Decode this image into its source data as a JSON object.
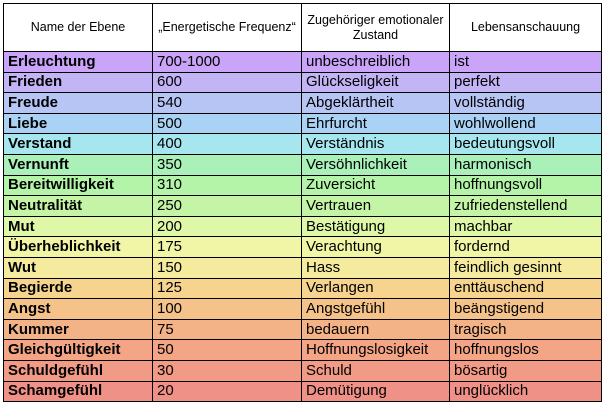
{
  "headers": [
    "Name der Ebene",
    "„Energetische Frequenz“",
    "Zugehöriger emotionaler Zustand",
    "Lebensanschauung"
  ],
  "rows": [
    {
      "name": "Erleuchtung",
      "freq": "700-1000",
      "state": "unbeschreiblich",
      "view": "ist",
      "color": "#c9a4f8"
    },
    {
      "name": "Frieden",
      "freq": "600",
      "state": "Glückseligkeit",
      "view": "perfekt",
      "color": "#c3b4f6"
    },
    {
      "name": "Freude",
      "freq": "540",
      "state": "Abgeklärtheit",
      "view": "vollständig",
      "color": "#b7c5f5"
    },
    {
      "name": "Liebe",
      "freq": "500",
      "state": "Ehrfurcht",
      "view": "wohlwollend",
      "color": "#a9d2f4"
    },
    {
      "name": "Verstand",
      "freq": "400",
      "state": "Verständnis",
      "view": "bedeutungsvoll",
      "color": "#a6e7ef"
    },
    {
      "name": "Vernunft",
      "freq": "350",
      "state": "Versöhnlichkeit",
      "view": "harmonisch",
      "color": "#a9f1b8"
    },
    {
      "name": "Bereitwilligkeit",
      "freq": "310",
      "state": "Zuversicht",
      "view": "hoffnungsvoll",
      "color": "#b3f4a9"
    },
    {
      "name": "Neutralität",
      "freq": "250",
      "state": "Vertrauen",
      "view": "zufriedenstellend",
      "color": "#c4f5a6"
    },
    {
      "name": "Mut",
      "freq": "200",
      "state": "Bestätigung",
      "view": "machbar",
      "color": "#dff8a8"
    },
    {
      "name": "Überheblichkeit",
      "freq": "175",
      "state": "Verachtung",
      "view": "fordernd",
      "color": "#f0f6a6"
    },
    {
      "name": "Wut",
      "freq": "150",
      "state": "Hass",
      "view": "feindlich gesinnt",
      "color": "#f5eb9e"
    },
    {
      "name": "Begierde",
      "freq": "125",
      "state": "Verlangen",
      "view": "enttäuschend",
      "color": "#f6d48e"
    },
    {
      "name": "Angst",
      "freq": "100",
      "state": "Angstgefühl",
      "view": "beängstigend",
      "color": "#f5c38a"
    },
    {
      "name": "Kummer",
      "freq": "75",
      "state": "bedauern",
      "view": "tragisch",
      "color": "#f4b386"
    },
    {
      "name": "Gleichgültigkeit",
      "freq": "50",
      "state": "Hoffnungslosigkeit",
      "view": "hoffnungslos",
      "color": "#f3a585"
    },
    {
      "name": "Schuldgefühl",
      "freq": "30",
      "state": "Schuld",
      "view": "bösartig",
      "color": "#f19a86"
    },
    {
      "name": "Schamgefühl",
      "freq": "20",
      "state": "Demütigung",
      "view": "unglücklich",
      "color": "#ef9187"
    }
  ]
}
